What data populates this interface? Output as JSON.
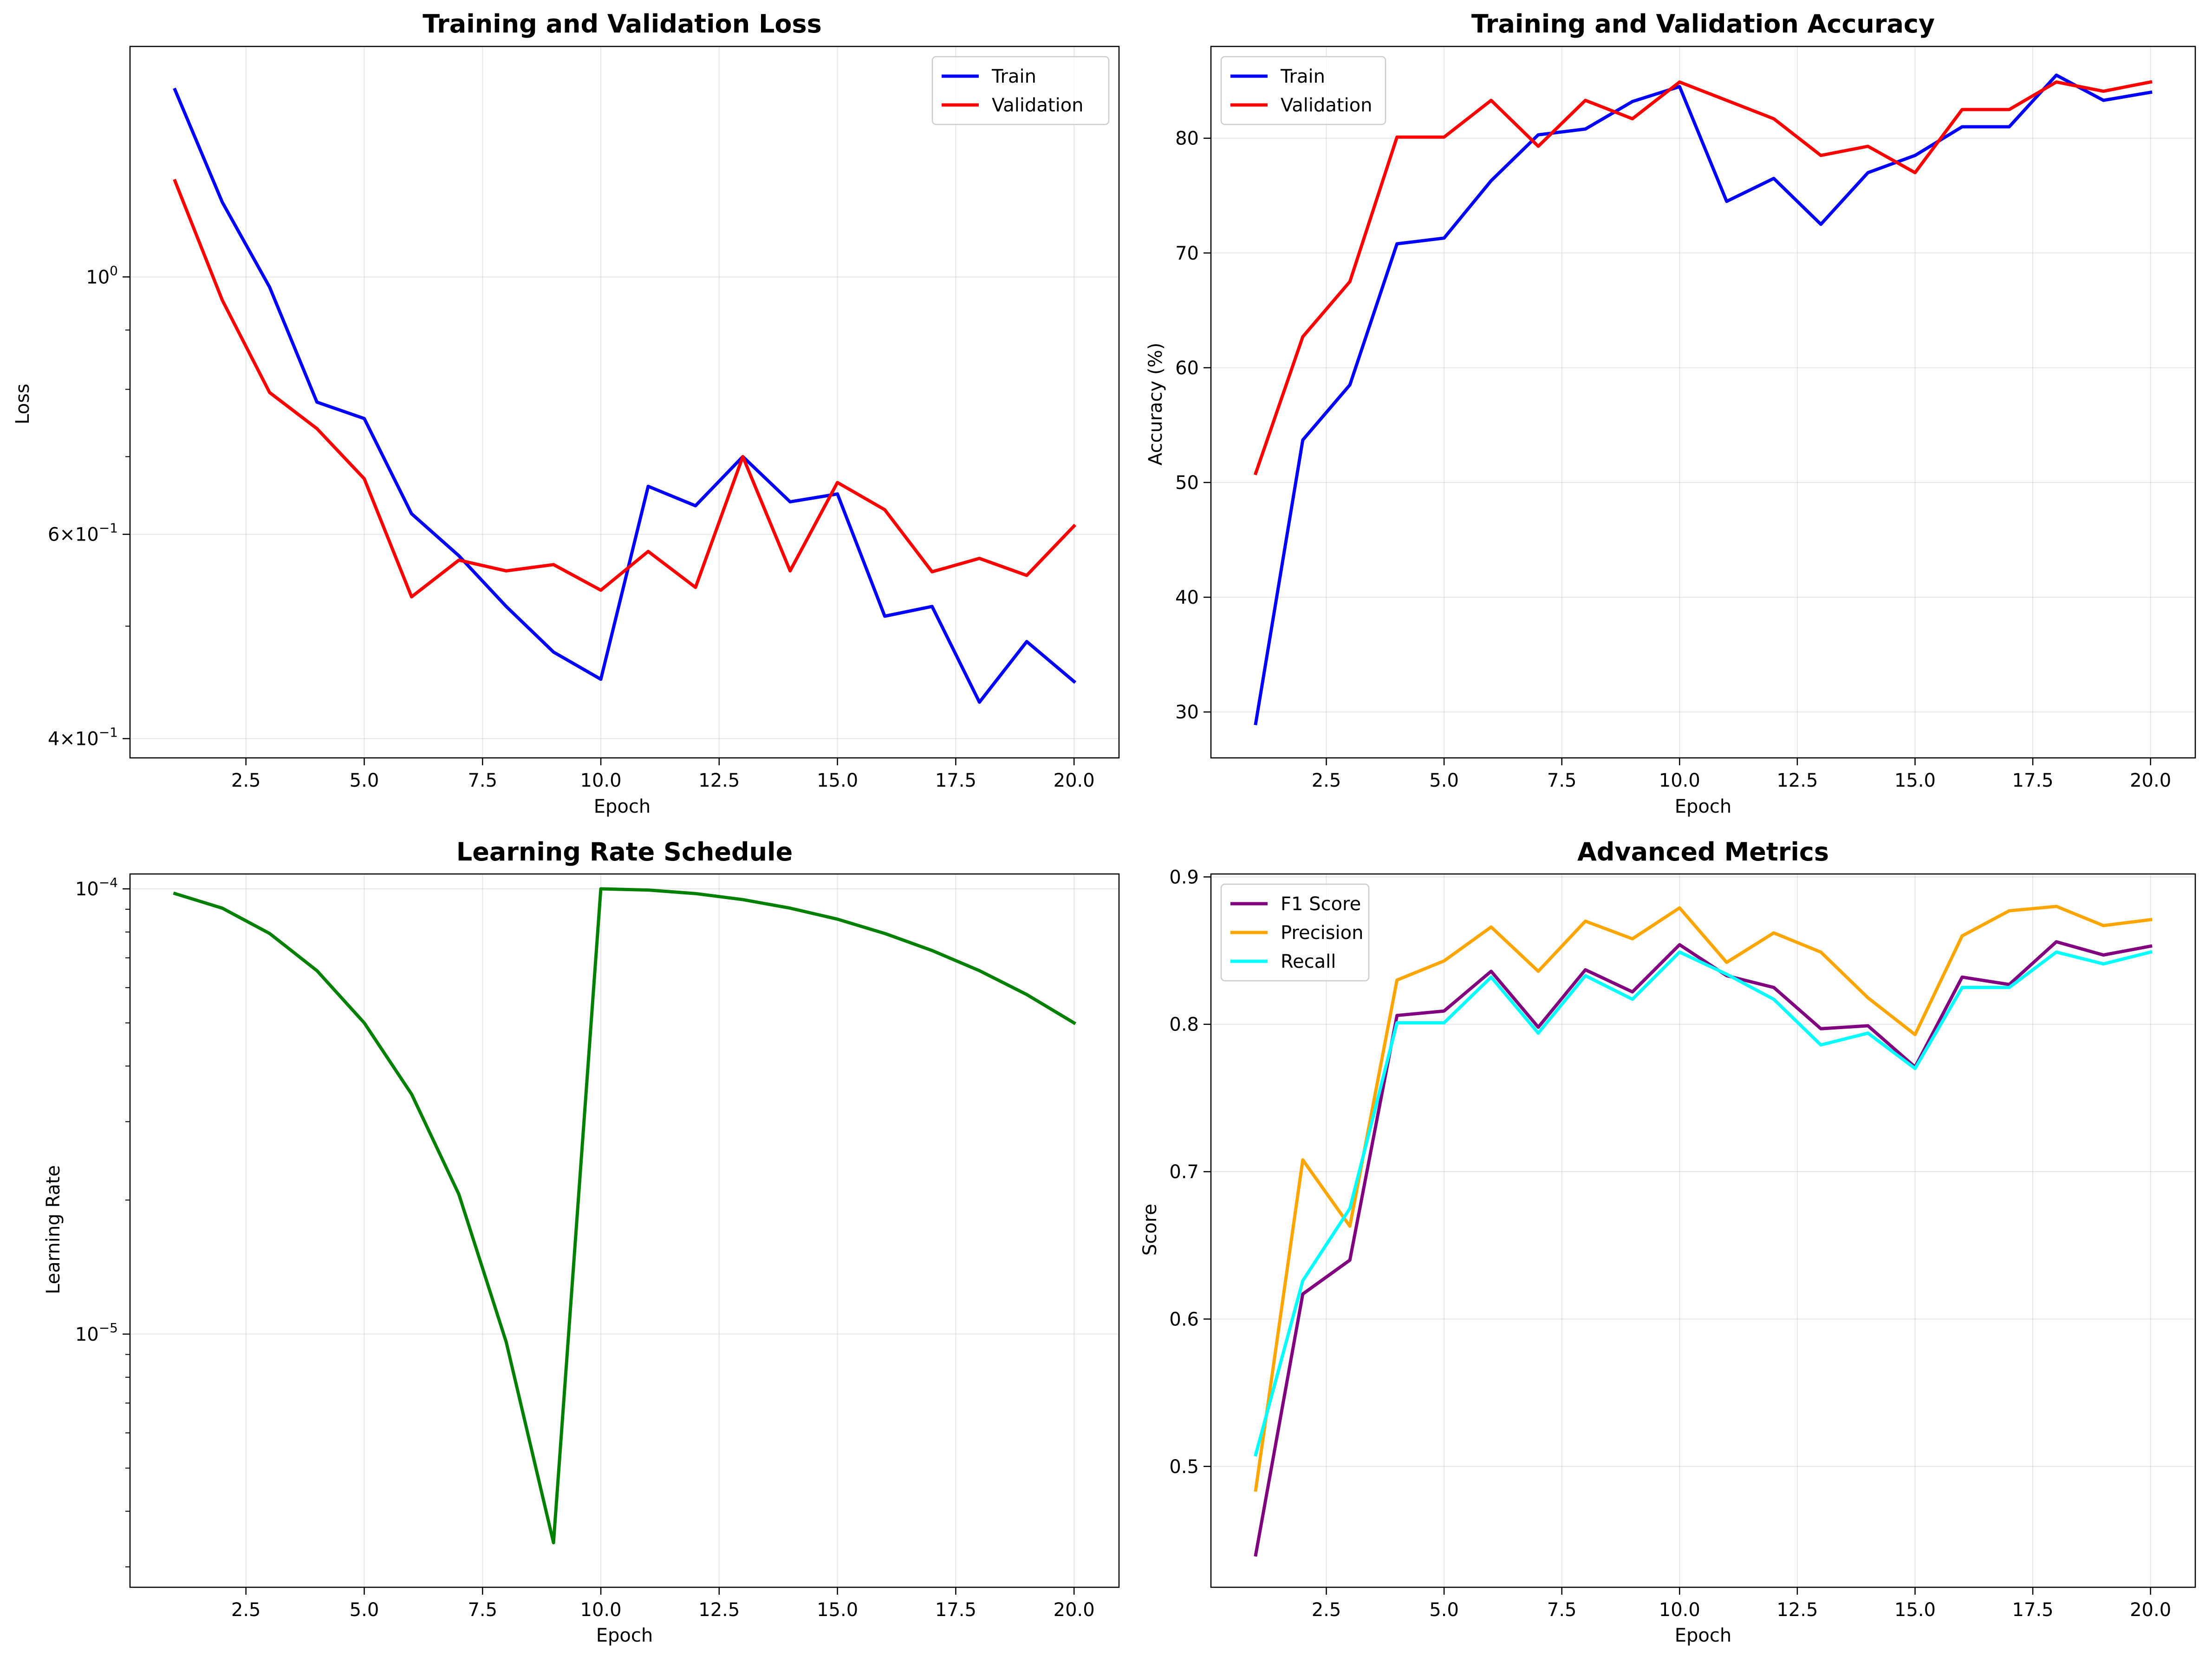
{
  "chart_data": [
    {
      "type": "line",
      "title": "Training and Validation Loss",
      "xlabel": "Epoch",
      "ylabel": "Loss",
      "yscale": "log",
      "xlim": [
        0.05,
        20.95
      ],
      "ylim": [
        0.385,
        1.58
      ],
      "grid": true,
      "legend": "upper right",
      "xticks": [
        2.5,
        5.0,
        7.5,
        10.0,
        12.5,
        15.0,
        17.5,
        20.0
      ],
      "xtick_labels": [
        "2.5",
        "5.0",
        "7.5",
        "10.0",
        "12.5",
        "15.0",
        "17.5",
        "20.0"
      ],
      "yticks": [
        1.0,
        0.6,
        0.4
      ],
      "ytick_labels": [
        {
          "base": "10",
          "exp": "0"
        },
        {
          "coef": "6×10",
          "exp": "−1"
        },
        {
          "coef": "4×10",
          "exp": "−1"
        }
      ],
      "x": [
        1,
        2,
        3,
        4,
        5,
        6,
        7,
        8,
        9,
        10,
        11,
        12,
        13,
        14,
        15,
        16,
        17,
        18,
        19,
        20
      ],
      "series": [
        {
          "name": "Train",
          "color": "#0000ff",
          "values": [
            1.45,
            1.16,
            0.98,
            0.78,
            0.755,
            0.625,
            0.575,
            0.52,
            0.475,
            0.45,
            0.66,
            0.635,
            0.7,
            0.64,
            0.65,
            0.51,
            0.52,
            0.43,
            0.485,
            0.448
          ]
        },
        {
          "name": "Validation",
          "color": "#ff0000",
          "values": [
            1.21,
            0.955,
            0.795,
            0.74,
            0.67,
            0.53,
            0.57,
            0.558,
            0.565,
            0.537,
            0.58,
            0.54,
            0.7,
            0.558,
            0.665,
            0.63,
            0.557,
            0.572,
            0.553,
            0.61
          ]
        }
      ]
    },
    {
      "type": "line",
      "title": "Training and Validation Accuracy",
      "xlabel": "Epoch",
      "ylabel": "Accuracy (%)",
      "yscale": "linear",
      "xlim": [
        0.05,
        20.95
      ],
      "ylim": [
        26.0,
        88.0
      ],
      "grid": true,
      "legend": "upper left",
      "xticks": [
        2.5,
        5.0,
        7.5,
        10.0,
        12.5,
        15.0,
        17.5,
        20.0
      ],
      "xtick_labels": [
        "2.5",
        "5.0",
        "7.5",
        "10.0",
        "12.5",
        "15.0",
        "17.5",
        "20.0"
      ],
      "yticks": [
        30,
        40,
        50,
        60,
        70,
        80
      ],
      "ytick_labels": [
        "30",
        "40",
        "50",
        "60",
        "70",
        "80"
      ],
      "x": [
        1,
        2,
        3,
        4,
        5,
        6,
        7,
        8,
        9,
        10,
        11,
        12,
        13,
        14,
        15,
        16,
        17,
        18,
        19,
        20
      ],
      "series": [
        {
          "name": "Train",
          "color": "#0000ff",
          "values": [
            29.0,
            53.7,
            58.5,
            70.8,
            71.3,
            76.3,
            80.3,
            80.8,
            83.2,
            84.5,
            74.5,
            76.5,
            72.5,
            77.0,
            78.5,
            81.0,
            81.0,
            85.5,
            83.3,
            84.0
          ]
        },
        {
          "name": "Validation",
          "color": "#ff0000",
          "values": [
            50.8,
            62.7,
            67.5,
            80.1,
            80.1,
            83.3,
            79.3,
            83.3,
            81.7,
            84.9,
            83.3,
            81.7,
            78.5,
            79.3,
            77.0,
            82.5,
            82.5,
            84.9,
            84.1,
            84.9
          ]
        }
      ]
    },
    {
      "type": "line",
      "title": "Learning Rate Schedule",
      "xlabel": "Epoch",
      "ylabel": "Learning Rate",
      "yscale": "log",
      "xlim": [
        0.05,
        20.95
      ],
      "ylim": [
        2.7e-06,
        0.000108
      ],
      "grid": true,
      "legend": null,
      "xticks": [
        2.5,
        5.0,
        7.5,
        10.0,
        12.5,
        15.0,
        17.5,
        20.0
      ],
      "xtick_labels": [
        "2.5",
        "5.0",
        "7.5",
        "10.0",
        "12.5",
        "15.0",
        "17.5",
        "20.0"
      ],
      "yticks": [
        0.0001,
        1e-05
      ],
      "ytick_labels": [
        {
          "base": "10",
          "exp": "−4"
        },
        {
          "base": "10",
          "exp": "−5"
        }
      ],
      "x": [
        1,
        2,
        3,
        4,
        5,
        6,
        7,
        8,
        9,
        10,
        11,
        12,
        13,
        14,
        15,
        16,
        17,
        18,
        19,
        20
      ],
      "series": [
        {
          "name": "",
          "color": "#008000",
          "values": [
            9.76e-05,
            9.05e-05,
            7.94e-05,
            6.55e-05,
            5e-05,
            3.46e-05,
            2.06e-05,
            9.6e-06,
            3.4e-06,
            0.0001,
            9.94e-05,
            9.76e-05,
            9.46e-05,
            9.05e-05,
            8.55e-05,
            7.94e-05,
            7.27e-05,
            6.55e-05,
            5.79e-05,
            5e-05
          ]
        }
      ]
    },
    {
      "type": "line",
      "title": "Advanced Metrics",
      "xlabel": "Epoch",
      "ylabel": "Score",
      "yscale": "linear",
      "xlim": [
        0.05,
        20.95
      ],
      "ylim": [
        0.418,
        0.902
      ],
      "grid": true,
      "legend": "upper left",
      "xticks": [
        2.5,
        5.0,
        7.5,
        10.0,
        12.5,
        15.0,
        17.5,
        20.0
      ],
      "xtick_labels": [
        "2.5",
        "5.0",
        "7.5",
        "10.0",
        "12.5",
        "15.0",
        "17.5",
        "20.0"
      ],
      "yticks": [
        0.5,
        0.6,
        0.7,
        0.8,
        0.9
      ],
      "ytick_labels": [
        "0.5",
        "0.6",
        "0.7",
        "0.8",
        "0.9"
      ],
      "x": [
        1,
        2,
        3,
        4,
        5,
        6,
        7,
        8,
        9,
        10,
        11,
        12,
        13,
        14,
        15,
        16,
        17,
        18,
        19,
        20
      ],
      "series": [
        {
          "name": "F1 Score",
          "color": "#800080",
          "values": [
            0.44,
            0.617,
            0.64,
            0.806,
            0.809,
            0.836,
            0.798,
            0.837,
            0.822,
            0.854,
            0.833,
            0.825,
            0.797,
            0.799,
            0.771,
            0.832,
            0.827,
            0.856,
            0.847,
            0.853
          ]
        },
        {
          "name": "Precision",
          "color": "#ffa500",
          "values": [
            0.484,
            0.708,
            0.663,
            0.83,
            0.843,
            0.866,
            0.836,
            0.87,
            0.858,
            0.879,
            0.842,
            0.862,
            0.849,
            0.818,
            0.793,
            0.86,
            0.877,
            0.88,
            0.867,
            0.871
          ]
        },
        {
          "name": "Recall",
          "color": "#00ffff",
          "values": [
            0.508,
            0.626,
            0.675,
            0.801,
            0.801,
            0.832,
            0.794,
            0.833,
            0.817,
            0.849,
            0.834,
            0.817,
            0.786,
            0.794,
            0.77,
            0.825,
            0.825,
            0.849,
            0.841,
            0.849
          ]
        }
      ]
    }
  ]
}
